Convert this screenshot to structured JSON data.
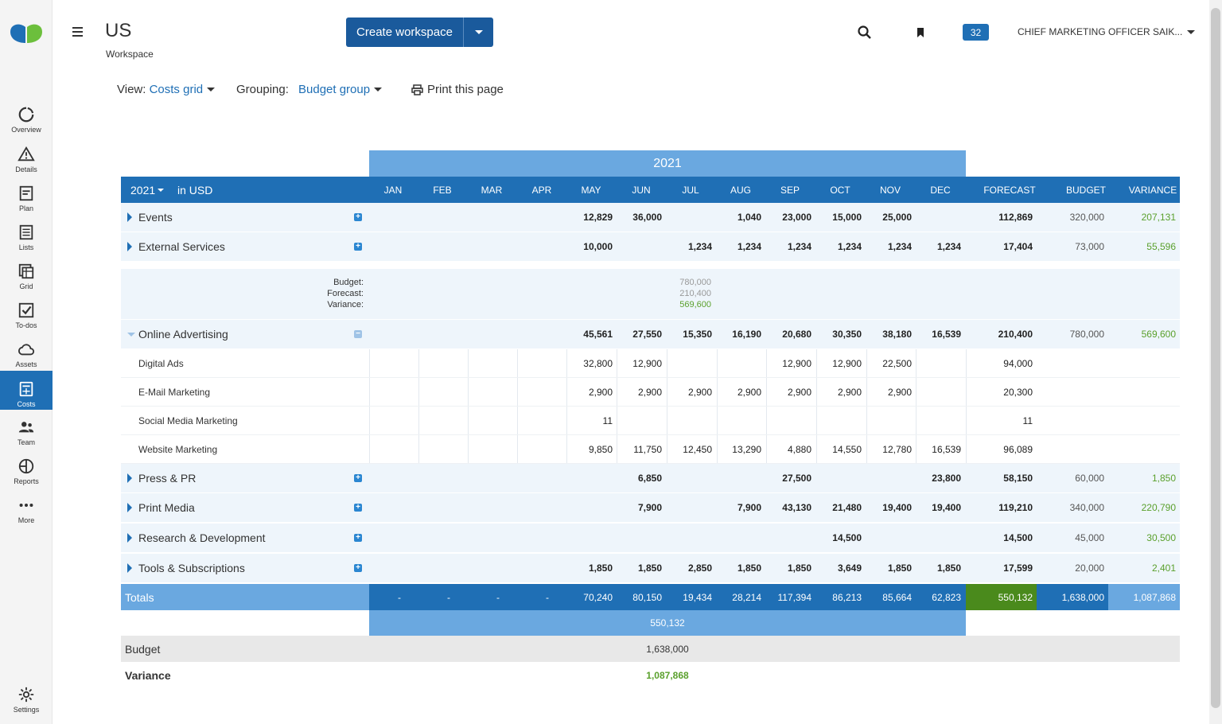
{
  "sidebar": {
    "items": [
      {
        "label": "Overview",
        "icon": "overview-icon"
      },
      {
        "label": "Details",
        "icon": "warning-triangle-icon"
      },
      {
        "label": "Plan",
        "icon": "plan-icon"
      },
      {
        "label": "Lists",
        "icon": "list-icon"
      },
      {
        "label": "Grid",
        "icon": "grid-icon"
      },
      {
        "label": "To-dos",
        "icon": "checkbox-icon"
      },
      {
        "label": "Assets",
        "icon": "cloud-icon"
      },
      {
        "label": "Costs",
        "icon": "calculator-icon",
        "active": true
      },
      {
        "label": "Team",
        "icon": "team-icon"
      },
      {
        "label": "Reports",
        "icon": "pie-chart-icon"
      },
      {
        "label": "More",
        "icon": "more-dots-icon"
      }
    ],
    "settings_label": "Settings"
  },
  "header": {
    "title": "US",
    "subtitle": "Workspace",
    "create_button": "Create workspace",
    "notifications": "32",
    "user": "CHIEF MARKETING OFFICER SAIK..."
  },
  "toolbar": {
    "view_label": "View:",
    "view_value": "Costs grid",
    "grouping_label": "Grouping:",
    "grouping_value": "Budget group",
    "print_label": "Print this page"
  },
  "grid": {
    "year": "2021",
    "year_select": "2021",
    "currency": "in USD",
    "columns": [
      "JAN",
      "FEB",
      "MAR",
      "APR",
      "MAY",
      "JUN",
      "JUL",
      "AUG",
      "SEP",
      "OCT",
      "NOV",
      "DEC",
      "FORECAST",
      "BUDGET",
      "VARIANCE"
    ],
    "rows": [
      {
        "type": "group",
        "name": "Events",
        "values": [
          "",
          "",
          "",
          "",
          "12,829",
          "36,000",
          "",
          "1,040",
          "23,000",
          "15,000",
          "25,000",
          "",
          "112,869",
          "320,000",
          "207,131"
        ]
      },
      {
        "type": "group",
        "name": "External Services",
        "values": [
          "",
          "",
          "",
          "",
          "10,000",
          "",
          "1,234",
          "1,234",
          "1,234",
          "1,234",
          "1,234",
          "1,234",
          "17,404",
          "73,000",
          "55,596"
        ]
      },
      {
        "type": "group-open",
        "name": "Online Advertising",
        "values": [
          "",
          "",
          "",
          "",
          "45,561",
          "27,550",
          "15,350",
          "16,190",
          "20,680",
          "30,350",
          "38,180",
          "16,539",
          "210,400",
          "780,000",
          "569,600"
        ]
      },
      {
        "type": "sub",
        "name": "Digital Ads",
        "values": [
          "",
          "",
          "",
          "",
          "32,800",
          "12,900",
          "",
          "",
          "12,900",
          "12,900",
          "22,500",
          "",
          "94,000",
          "",
          ""
        ]
      },
      {
        "type": "sub",
        "name": "E-Mail Marketing",
        "values": [
          "",
          "",
          "",
          "",
          "2,900",
          "2,900",
          "2,900",
          "2,900",
          "2,900",
          "2,900",
          "2,900",
          "",
          "20,300",
          "",
          ""
        ]
      },
      {
        "type": "sub",
        "name": "Social Media Marketing",
        "values": [
          "",
          "",
          "",
          "",
          "11",
          "",
          "",
          "",
          "",
          "",
          "",
          "",
          "11",
          "",
          ""
        ]
      },
      {
        "type": "sub",
        "name": "Website Marketing",
        "values": [
          "",
          "",
          "",
          "",
          "9,850",
          "11,750",
          "12,450",
          "13,290",
          "4,880",
          "14,550",
          "12,780",
          "16,539",
          "96,089",
          "",
          ""
        ]
      },
      {
        "type": "group",
        "name": "Press & PR",
        "values": [
          "",
          "",
          "",
          "",
          "",
          "6,850",
          "",
          "",
          "27,500",
          "",
          "",
          "23,800",
          "58,150",
          "60,000",
          "1,850"
        ]
      },
      {
        "type": "group",
        "name": "Print Media",
        "values": [
          "",
          "",
          "",
          "",
          "",
          "7,900",
          "",
          "7,900",
          "43,130",
          "21,480",
          "19,400",
          "19,400",
          "119,210",
          "340,000",
          "220,790"
        ]
      },
      {
        "type": "group",
        "name": "Research & Development",
        "values": [
          "",
          "",
          "",
          "",
          "",
          "",
          "",
          "",
          "",
          "14,500",
          "",
          "",
          "14,500",
          "45,000",
          "30,500"
        ]
      },
      {
        "type": "group",
        "name": "Tools & Subscriptions",
        "values": [
          "",
          "",
          "",
          "",
          "1,850",
          "1,850",
          "2,850",
          "1,850",
          "1,850",
          "3,649",
          "1,850",
          "1,850",
          "17,599",
          "20,000",
          "2,401"
        ]
      }
    ],
    "detail": {
      "labels": [
        "Budget:",
        "Forecast:",
        "Variance:"
      ],
      "values": [
        "780,000",
        "210,400",
        "569,600"
      ]
    },
    "totals": {
      "label": "Totals",
      "values": [
        "-",
        "-",
        "-",
        "-",
        "70,240",
        "80,150",
        "19,434",
        "28,214",
        "117,394",
        "86,213",
        "85,664",
        "62,823",
        "550,132",
        "1,638,000",
        "1,087,868"
      ]
    },
    "sum_band": "550,132",
    "budget": {
      "label": "Budget",
      "value": "1,638,000"
    },
    "variance": {
      "label": "Variance",
      "value": "1,087,868"
    }
  },
  "colors": {
    "primary": "#1f6fb5",
    "light_blue": "#6aa8e0",
    "green": "#5aa02c",
    "forecast_total": "#4a8a1c"
  }
}
